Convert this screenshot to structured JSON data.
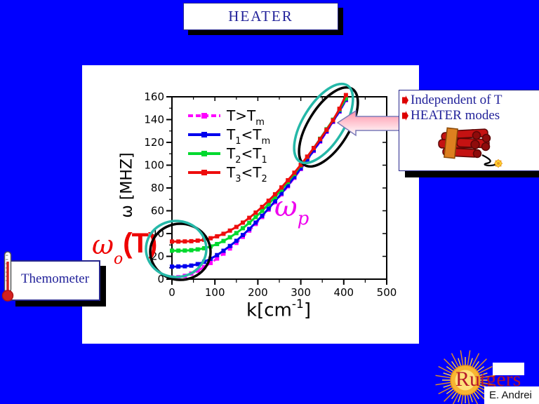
{
  "slide": {
    "title": "HEATER"
  },
  "chart_data": {
    "type": "line",
    "xlabel": "k[cm⁻¹]",
    "ylabel": "ω [MHZ]",
    "xlim": [
      0,
      500
    ],
    "ylim": [
      0,
      160
    ],
    "xticks": [
      0,
      100,
      200,
      300,
      400,
      500
    ],
    "xticks_minor": [
      50,
      150,
      250,
      350,
      450
    ],
    "yticks": [
      0,
      20,
      40,
      60,
      80,
      100,
      120,
      140,
      160
    ],
    "yticks_minor": [
      10,
      30,
      50,
      70,
      90,
      110,
      130,
      150
    ],
    "grid": false,
    "legend_position": "upper-left-inside",
    "x": [
      0,
      15,
      30,
      45,
      60,
      75,
      90,
      105,
      120,
      135,
      150,
      165,
      180,
      195,
      210,
      225,
      240,
      255,
      270,
      285,
      300,
      315,
      330,
      345,
      360,
      375,
      390,
      405
    ],
    "series": [
      {
        "name": "T>Tm",
        "label_segments": [
          {
            "text": "T>T",
            "sub": "m"
          }
        ],
        "color": "#ff00ff",
        "style": "dashed",
        "marker": "square",
        "values": [
          1.5,
          1.7,
          2.9,
          4.9,
          7.5,
          10.6,
          14.2,
          18.1,
          22.4,
          26.9,
          31.8,
          37.1,
          42.6,
          48.4,
          54.5,
          60.9,
          67.5,
          74.4,
          81.5,
          88.9,
          96.6,
          104.4,
          112.5,
          120.7,
          129.3,
          138.0,
          147.0,
          157.0
        ]
      },
      {
        "name": "T1<Tm",
        "label_segments": [
          {
            "text": "T",
            "sub": "1"
          },
          {
            "text": "<T",
            "sub": "m"
          }
        ],
        "color": "#0000ee",
        "style": "solid",
        "marker": "square",
        "values": [
          11.0,
          11.1,
          11.3,
          11.9,
          13.2,
          15.2,
          17.9,
          21.1,
          24.9,
          29.1,
          33.6,
          38.7,
          44.0,
          49.6,
          55.6,
          61.9,
          68.4,
          75.2,
          82.2,
          89.6,
          97.2,
          105.0,
          113.0,
          121.2,
          129.8,
          138.4,
          147.4,
          157.5
        ]
      },
      {
        "name": "T2<T1",
        "label_segments": [
          {
            "text": "T",
            "sub": "2"
          },
          {
            "text": "<T",
            "sub": "1"
          }
        ],
        "color": "#00d92e",
        "style": "solid",
        "marker": "square",
        "values": [
          25.0,
          25.0,
          25.1,
          25.4,
          26.1,
          27.1,
          28.7,
          30.8,
          33.5,
          36.7,
          40.4,
          44.7,
          49.4,
          54.5,
          59.9,
          65.8,
          72.0,
          78.5,
          85.2,
          92.3,
          99.7,
          107.3,
          115.1,
          123.2,
          131.5,
          139.9,
          148.7,
          158.5
        ]
      },
      {
        "name": "T3<T2",
        "label_segments": [
          {
            "text": "T",
            "sub": "3"
          },
          {
            "text": "<T",
            "sub": "2"
          }
        ],
        "color": "#ee0d0d",
        "style": "solid",
        "marker": "square",
        "values": [
          33.0,
          33.0,
          33.1,
          33.3,
          33.8,
          34.6,
          35.9,
          37.6,
          39.8,
          42.6,
          45.8,
          49.6,
          53.8,
          58.4,
          63.4,
          68.8,
          74.5,
          80.5,
          86.8,
          93.4,
          100.3,
          107.5,
          115.0,
          122.8,
          131.0,
          139.4,
          149.5,
          161.5
        ]
      }
    ]
  },
  "annotations": {
    "right_box": {
      "bullets": [
        "Independent of T",
        "HEATER modes"
      ],
      "bullet_color": "#dd0000"
    },
    "thermometer_label": "Themometer",
    "omega_p": {
      "symbol": "ω",
      "sub": "p"
    },
    "omega_o": {
      "symbol": "ω",
      "sub": "o",
      "suffix": "(T)"
    },
    "xlabel_parts": {
      "main": "k[cm",
      "sup": "-1",
      "end": "]"
    }
  },
  "logo": {
    "university": "Rutgers",
    "author": "E. Andrei"
  },
  "colors": {
    "background": "#0000ff",
    "box_text": "#22229a",
    "highlight_ellipse": "#25b8a8",
    "ellipse_shadow": "#000000",
    "arrow_top": "#ff93a8",
    "arrow_mid": "#ffc9d4",
    "arrow_bottom": "#ffffff",
    "omega_p": "#ee00ee",
    "omega_o": "#ee0000",
    "rutgers_red": "#b5172b"
  }
}
